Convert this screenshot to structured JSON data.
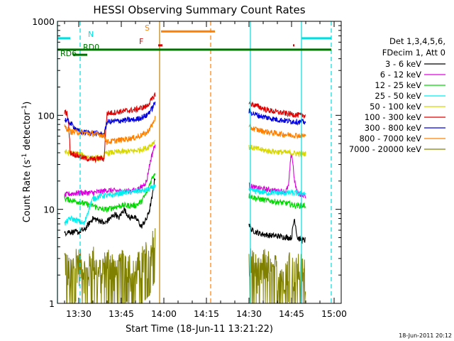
{
  "chart_data": {
    "type": "line",
    "title": "HESSI Observing Summary Count Rates",
    "xlabel": "Start Time (18-Jun-11 13:21:22)",
    "ylabel_main": "Count Rate (s",
    "ylabel_sup1": "-1",
    "ylabel_mid": " detector",
    "ylabel_sup2": "-1",
    "ylabel_end": ")",
    "y_scale": "log",
    "ylim": [
      1,
      1000
    ],
    "xlim_minutes": [
      802.5,
      902.5
    ],
    "x_ticks": [
      {
        "label": "13:30",
        "min": 810
      },
      {
        "label": "13:45",
        "min": 825
      },
      {
        "label": "14:00",
        "min": 840
      },
      {
        "label": "14:15",
        "min": 855
      },
      {
        "label": "14:30",
        "min": 870
      },
      {
        "label": "14:45",
        "min": 885
      },
      {
        "label": "15:00",
        "min": 900
      }
    ],
    "y_ticks": [
      {
        "label": "1",
        "value": 1
      },
      {
        "label": "10",
        "value": 10
      },
      {
        "label": "100",
        "value": 100
      },
      {
        "label": "1000",
        "value": 1000
      }
    ],
    "legend_header": [
      "Det 1,3,4,5,6,",
      "FDecim 1, Att 0"
    ],
    "legend_placement": "right",
    "series": [
      {
        "name": "3 - 6 keV",
        "color": "#000000",
        "segments": [
          {
            "x": [
              805,
              806,
              810,
              811,
              812,
              815,
              818,
              819,
              821,
              823,
              824,
              826,
              828,
              829,
              831,
              832,
              834,
              835,
              836,
              837
            ],
            "y": [
              5.5,
              5.8,
              5.7,
              6.0,
              6.0,
              8.0,
              7.5,
              7.0,
              8.0,
              9.0,
              8.0,
              10.0,
              8.0,
              8.5,
              7.5,
              6.5,
              8.0,
              10.0,
              14.0,
              23.0
            ]
          },
          {
            "x": [
              870,
              871,
              874,
              877,
              880,
              882,
              884,
              885,
              886,
              887,
              888,
              889,
              890
            ],
            "y": [
              7.0,
              6.0,
              5.5,
              5.3,
              5.2,
              5.1,
              5.0,
              5.0,
              8.0,
              5.0,
              4.8,
              4.7,
              4.7
            ]
          }
        ]
      },
      {
        "name": "6 - 12 keV",
        "color": "#e000e0",
        "segments": [
          {
            "x": [
              805,
              806,
              810,
              815,
              818,
              820,
              825,
              830,
              832,
              834,
              835,
              836,
              837
            ],
            "y": [
              14.0,
              14.5,
              15.0,
              15.0,
              15.5,
              16.0,
              15.5,
              16.0,
              17.0,
              20.0,
              30.0,
              40.0,
              50.0
            ]
          },
          {
            "x": [
              870,
              872,
              875,
              878,
              881,
              883,
              884,
              885,
              886,
              887,
              888,
              890
            ],
            "y": [
              18.0,
              17.0,
              16.5,
              16.0,
              15.5,
              15.5,
              18.0,
              40.0,
              20.0,
              15.0,
              14.5,
              14.0
            ]
          }
        ]
      },
      {
        "name": "12 - 25 keV",
        "color": "#00d800",
        "segments": [
          {
            "x": [
              805,
              810,
              812,
              815,
              818,
              820,
              825,
              830,
              832,
              834,
              836,
              837
            ],
            "y": [
              13.0,
              12.0,
              11.5,
              11.0,
              10.0,
              10.0,
              11.0,
              11.0,
              12.0,
              15.0,
              22.0,
              25.0
            ]
          },
          {
            "x": [
              870,
              873,
              876,
              880,
              884,
              886,
              888,
              890
            ],
            "y": [
              14.0,
              13.0,
              12.5,
              12.0,
              11.5,
              11.0,
              11.0,
              11.0
            ]
          }
        ]
      },
      {
        "name": "25 - 50 keV",
        "color": "#00f0f0",
        "segments": [
          {
            "x": [
              805,
              807,
              810,
              812,
              815,
              818,
              821,
              825,
              830,
              834,
              836,
              837
            ],
            "y": [
              7.0,
              8.0,
              7.5,
              7.0,
              13.0,
              14.0,
              14.0,
              15.0,
              15.5,
              16.0,
              17.0,
              18.0
            ]
          },
          {
            "x": [
              870,
              873,
              876,
              880,
              884,
              888,
              890
            ],
            "y": [
              16.0,
              15.5,
              15.0,
              15.0,
              15.0,
              14.8,
              14.8
            ]
          }
        ]
      },
      {
        "name": "50 - 100 keV",
        "color": "#d8d800",
        "segments": [
          {
            "x": [
              805,
              806,
              810,
              811,
              812,
              815,
              818,
              820,
              825,
              830,
              834,
              836,
              837
            ],
            "y": [
              41.0,
              40.0,
              39.0,
              38.0,
              37.0,
              35.0,
              35.0,
              40.0,
              41.0,
              42.0,
              45.0,
              50.0,
              55.0
            ]
          },
          {
            "x": [
              870,
              873,
              876,
              880,
              884,
              888,
              890
            ],
            "y": [
              46.0,
              44.0,
              42.0,
              41.0,
              40.0,
              39.0,
              39.0
            ]
          }
        ]
      },
      {
        "name": "100 - 300 keV",
        "color": "#e00000",
        "segments": [
          {
            "x": [
              805,
              806,
              807,
              810,
              811,
              812,
              815,
              818,
              819,
              820,
              825,
              830,
              834,
              836,
              837
            ],
            "y": [
              110.0,
              105.0,
              40.0,
              37.0,
              36.0,
              35.0,
              34.0,
              35.0,
              34.0,
              105.0,
              110.0,
              115.0,
              125.0,
              150.0,
              170.0
            ]
          },
          {
            "x": [
              870,
              873,
              876,
              880,
              884,
              888,
              890
            ],
            "y": [
              135.0,
              125.0,
              115.0,
              108.0,
              104.0,
              100.0,
              100.0
            ]
          }
        ]
      },
      {
        "name": "300 - 800 keV",
        "color": "#0000e0",
        "segments": [
          {
            "x": [
              805,
              806,
              810,
              812,
              815,
              818,
              819,
              820,
              825,
              830,
              834,
              836,
              837
            ],
            "y": [
              90.0,
              88.0,
              67.0,
              66.0,
              65.0,
              63.0,
              62.0,
              85.0,
              88.0,
              90.0,
              100.0,
              120.0,
              140.0
            ]
          },
          {
            "x": [
              870,
              873,
              876,
              880,
              884,
              888,
              890
            ],
            "y": [
              110.0,
              100.0,
              95.0,
              90.0,
              87.0,
              85.0,
              85.0
            ]
          }
        ]
      },
      {
        "name": "800 - 7000 keV",
        "color": "#ff8000",
        "segments": [
          {
            "x": [
              805,
              806,
              807,
              810,
              812,
              815,
              818,
              819,
              820,
              825,
              830,
              834,
              836,
              837
            ],
            "y": [
              75.0,
              72.0,
              67.0,
              66.0,
              65.0,
              64.0,
              62.0,
              60.0,
              52.0,
              55.0,
              58.0,
              65.0,
              80.0,
              95.0
            ]
          },
          {
            "x": [
              870,
              873,
              876,
              880,
              884,
              888,
              890
            ],
            "y": [
              75.0,
              70.0,
              67.0,
              64.0,
              62.0,
              61.0,
              61.0
            ]
          }
        ]
      },
      {
        "name": "7000 - 20000 keV",
        "color": "#808000",
        "segments": [
          {
            "x": [
              805,
              807,
              809,
              811,
              813,
              815,
              817,
              819,
              821,
              823,
              825,
              827,
              829,
              831,
              833,
              835,
              837
            ],
            "y": [
              3.0,
              2.0,
              3.0,
              2.5,
              2.0,
              3.0,
              2.0,
              2.5,
              3.0,
              2.0,
              2.5,
              3.0,
              2.0,
              2.5,
              3.0,
              3.5,
              5.0
            ]
          },
          {
            "x": [
              870,
              872,
              874,
              876,
              878,
              880,
              882,
              884,
              886,
              888,
              890
            ],
            "y": [
              3.0,
              2.5,
              2.0,
              3.0,
              2.0,
              2.5,
              2.0,
              3.0,
              2.0,
              2.5,
              2.0
            ]
          }
        ]
      }
    ],
    "annotations": {
      "N": {
        "label": "N",
        "color": "#00e0e0",
        "ranges": [
          [
            802.5,
            807.0
          ],
          [
            888.5,
            899.0
          ]
        ],
        "level": 660
      },
      "S": {
        "label": "S",
        "color": "#ff8000",
        "ranges": [
          [
            839.0,
            858.0
          ]
        ],
        "level": 780
      },
      "F": {
        "label": "F",
        "color": "#e00000",
        "ranges": [
          [
            838.0,
            839.5
          ],
          [
            885.5,
            886.0
          ]
        ],
        "level": 555
      },
      "RD0": {
        "label": "RD0",
        "color": "#007000",
        "ranges": [
          [
            802.5,
            899.0
          ]
        ],
        "level": 500
      },
      "RD6": {
        "label": "RD6",
        "color": "#007000",
        "ranges": [
          [
            808.0,
            813.0
          ]
        ],
        "level": 440
      },
      "vlines_cyan_solid": [
        802.5,
        870.5,
        888.5
      ],
      "vlines_cyan_dashed": [
        810.5,
        899.0
      ],
      "vlines_orange_solid": [
        838.5
      ],
      "vlines_orange_dashed": [
        856.5
      ]
    },
    "footer_date": "18-Jun-2011 20:12",
    "grid": false
  }
}
